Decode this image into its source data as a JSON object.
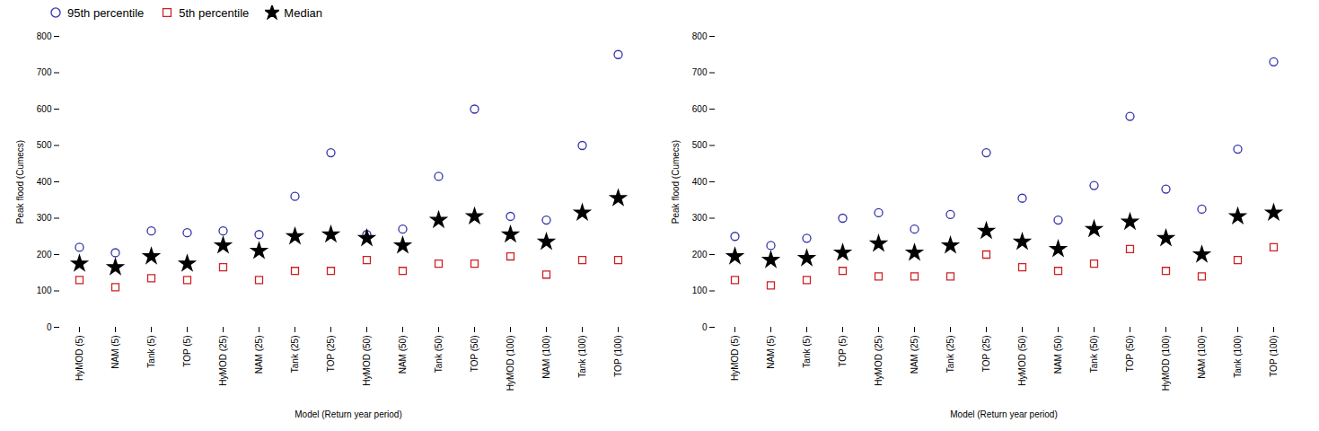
{
  "chart_data": [
    {
      "type": "scatter",
      "categories": [
        "HyMOD (5)",
        "NAM (5)",
        "Tank (5)",
        "TOP (5)",
        "HyMOD (25)",
        "NAM (25)",
        "Tank (25)",
        "TOP (25)",
        "HyMOD (50)",
        "NAM (50)",
        "Tank (50)",
        "TOP (50)",
        "HyMOD (100)",
        "NAM (100)",
        "Tank (100)",
        "TOP (100)"
      ],
      "series": [
        {
          "name": "95th percentile",
          "color": "#3333aa",
          "marker": "circle",
          "values": [
            220,
            205,
            265,
            260,
            265,
            255,
            360,
            480,
            255,
            270,
            415,
            600,
            305,
            295,
            500,
            750
          ]
        },
        {
          "name": "5th percentile",
          "color": "#cc2222",
          "marker": "square",
          "values": [
            130,
            110,
            135,
            130,
            165,
            130,
            155,
            155,
            185,
            155,
            175,
            175,
            195,
            145,
            185,
            185
          ]
        },
        {
          "name": "Median",
          "color": "#000000",
          "marker": "star",
          "values": [
            175,
            165,
            195,
            175,
            225,
            210,
            250,
            255,
            245,
            225,
            295,
            305,
            255,
            235,
            315,
            355
          ]
        }
      ],
      "xlabel": "Model (Return year period)",
      "ylabel": "Peak flood (Cumecs)",
      "ylim": [
        0,
        800
      ],
      "yticks": [
        0,
        100,
        200,
        300,
        400,
        500,
        600,
        700,
        800
      ],
      "grid": false,
      "legend": "top"
    },
    {
      "type": "scatter",
      "categories": [
        "HyMOD (5)",
        "NAM (5)",
        "Tank (5)",
        "TOP (5)",
        "HyMOD (25)",
        "NAM (25)",
        "Tank (25)",
        "TOP (25)",
        "HyMOD (50)",
        "NAM (50)",
        "Tank (50)",
        "TOP (50)",
        "HyMOD (100)",
        "NAM (100)",
        "Tank (100)",
        "TOP (100)"
      ],
      "series": [
        {
          "name": "95th percentile",
          "color": "#3333aa",
          "marker": "circle",
          "values": [
            250,
            225,
            245,
            300,
            315,
            270,
            310,
            480,
            355,
            295,
            390,
            580,
            380,
            325,
            490,
            730
          ]
        },
        {
          "name": "5th percentile",
          "color": "#cc2222",
          "marker": "square",
          "values": [
            130,
            115,
            130,
            155,
            140,
            140,
            140,
            200,
            165,
            155,
            175,
            215,
            155,
            140,
            185,
            220
          ]
        },
        {
          "name": "Median",
          "color": "#000000",
          "marker": "star",
          "values": [
            195,
            185,
            190,
            205,
            230,
            205,
            225,
            265,
            235,
            215,
            270,
            290,
            245,
            200,
            305,
            315
          ]
        }
      ],
      "xlabel": "Model (Return year period)",
      "ylabel": "Peak flood (Cumecs)",
      "ylim": [
        0,
        800
      ],
      "yticks": [
        0,
        100,
        200,
        300,
        400,
        500,
        600,
        700,
        800
      ],
      "grid": false
    }
  ]
}
